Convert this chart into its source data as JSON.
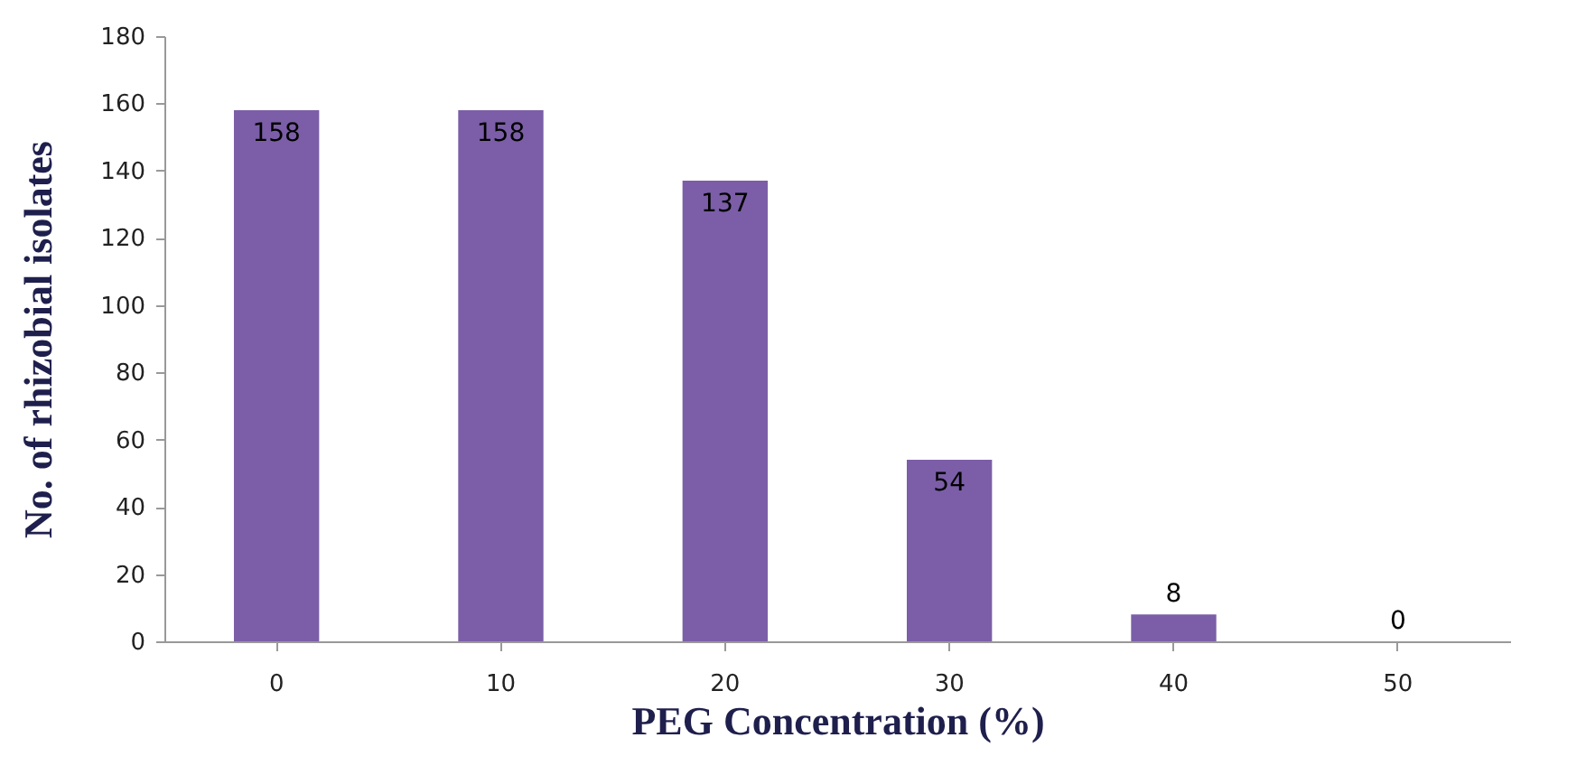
{
  "chart_data": {
    "type": "bar",
    "xlabel": "PEG Concentration (%)",
    "ylabel": "No. of rhizobial isolates",
    "categories": [
      "0",
      "10",
      "20",
      "30",
      "40",
      "50"
    ],
    "values": [
      158,
      158,
      137,
      54,
      8,
      0
    ],
    "color": "#7b5ea7",
    "ylim": [
      0,
      180
    ],
    "yticks": [
      0,
      20,
      40,
      60,
      80,
      100,
      120,
      140,
      160,
      180
    ],
    "data_labels": true,
    "grid": false
  }
}
